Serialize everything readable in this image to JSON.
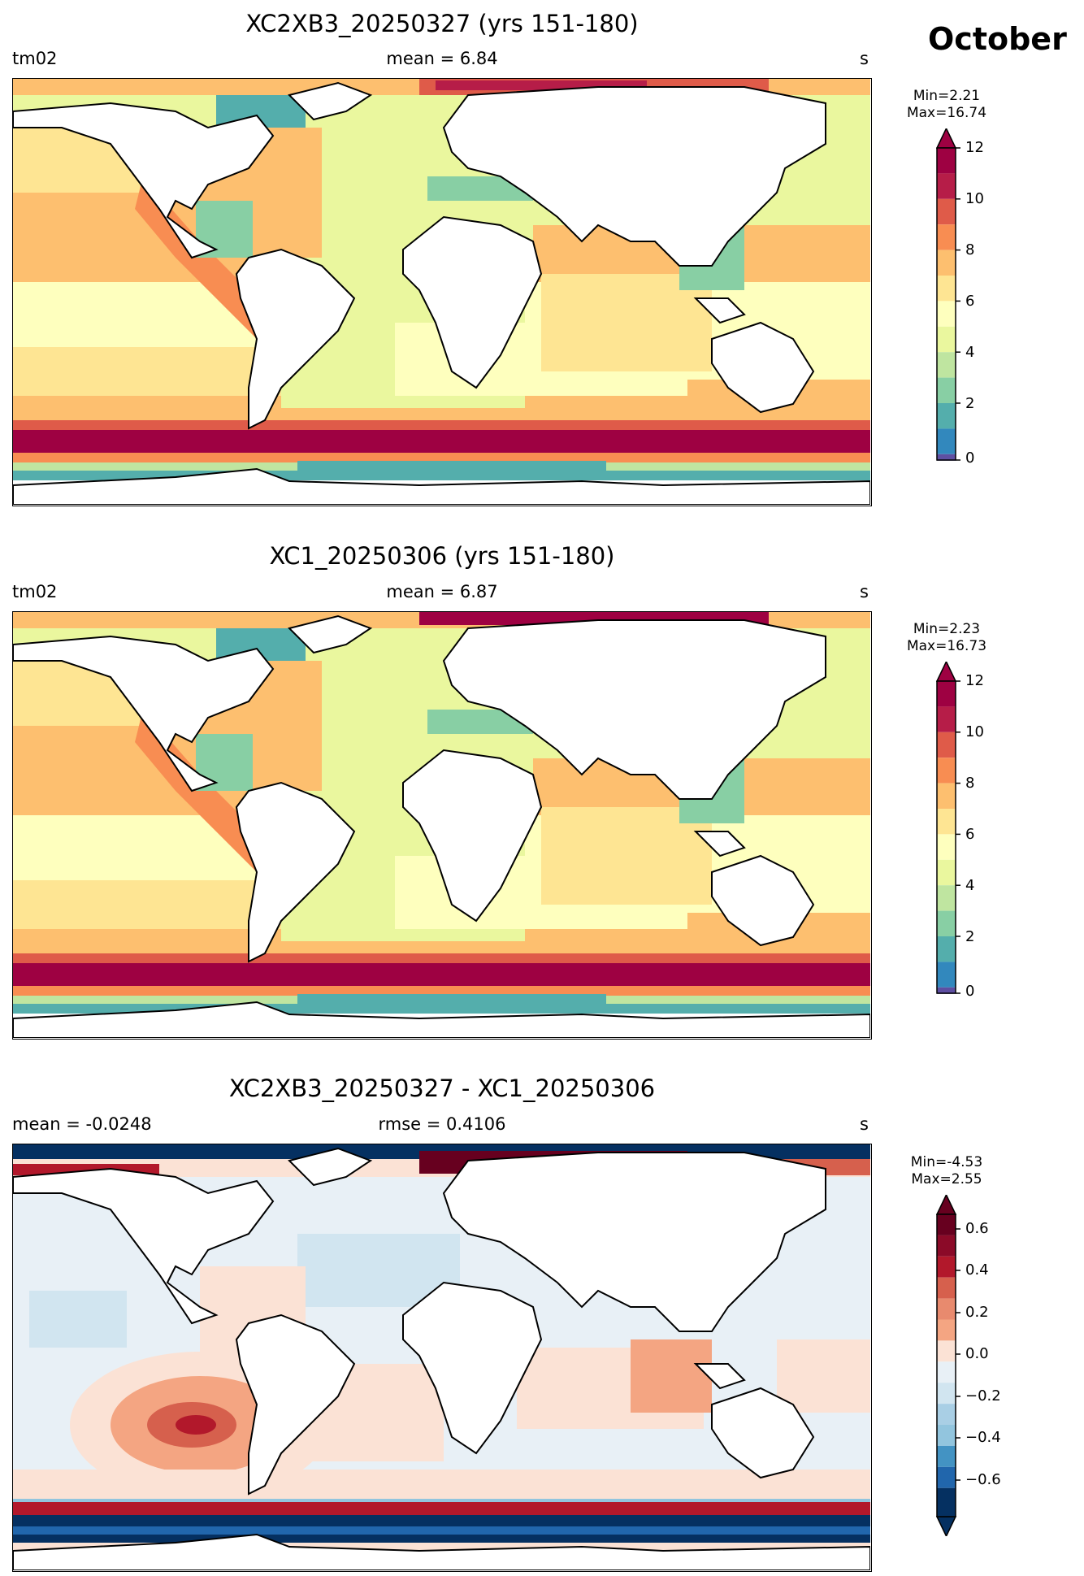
{
  "month": "October",
  "colors": {
    "diverging_0_12": [
      "#5e4fa2",
      "#3288bd",
      "#54aeac",
      "#88cfa4",
      "#bfe5a0",
      "#eaf79e",
      "#feffbe",
      "#fee593",
      "#fdbf6f",
      "#f88d52",
      "#df5b49",
      "#b61d48",
      "#9e0142"
    ],
    "diff": [
      "#053061",
      "#2166ac",
      "#4393c3",
      "#92c5de",
      "#d1e5f0",
      "#e8f0f6",
      "#fbe2d5",
      "#f4a582",
      "#d6604d",
      "#b2182b",
      "#67001f"
    ],
    "land": "#ffffff",
    "coast": "#000000"
  },
  "panels": [
    {
      "title": "XC2XB3_20250327 (yrs 151-180)",
      "left": "tm02",
      "center": "mean = 6.84",
      "right": "s",
      "min_label": "Min=2.21",
      "max_label": "Max=16.74",
      "colorbar": {
        "ticks": [
          "0",
          "2",
          "4",
          "6",
          "8",
          "10",
          "12"
        ],
        "extend": "max"
      }
    },
    {
      "title": "XC1_20250306 (yrs 151-180)",
      "left": "tm02",
      "center": "mean = 6.87",
      "right": "s",
      "min_label": "Min=2.23",
      "max_label": "Max=16.73",
      "colorbar": {
        "ticks": [
          "0",
          "2",
          "4",
          "6",
          "8",
          "10",
          "12"
        ],
        "extend": "max"
      }
    },
    {
      "title": "XC2XB3_20250327 - XC1_20250306",
      "left": "mean = -0.0248",
      "center": "rmse = 0.4106",
      "right": "s",
      "min_label": "Min=-4.53",
      "max_label": "Max=2.55",
      "colorbar": {
        "ticks": [
          "0.6",
          "0.4",
          "0.2",
          "0.0",
          "−0.2",
          "−0.4",
          "−0.6"
        ],
        "extend": "both"
      }
    }
  ]
}
